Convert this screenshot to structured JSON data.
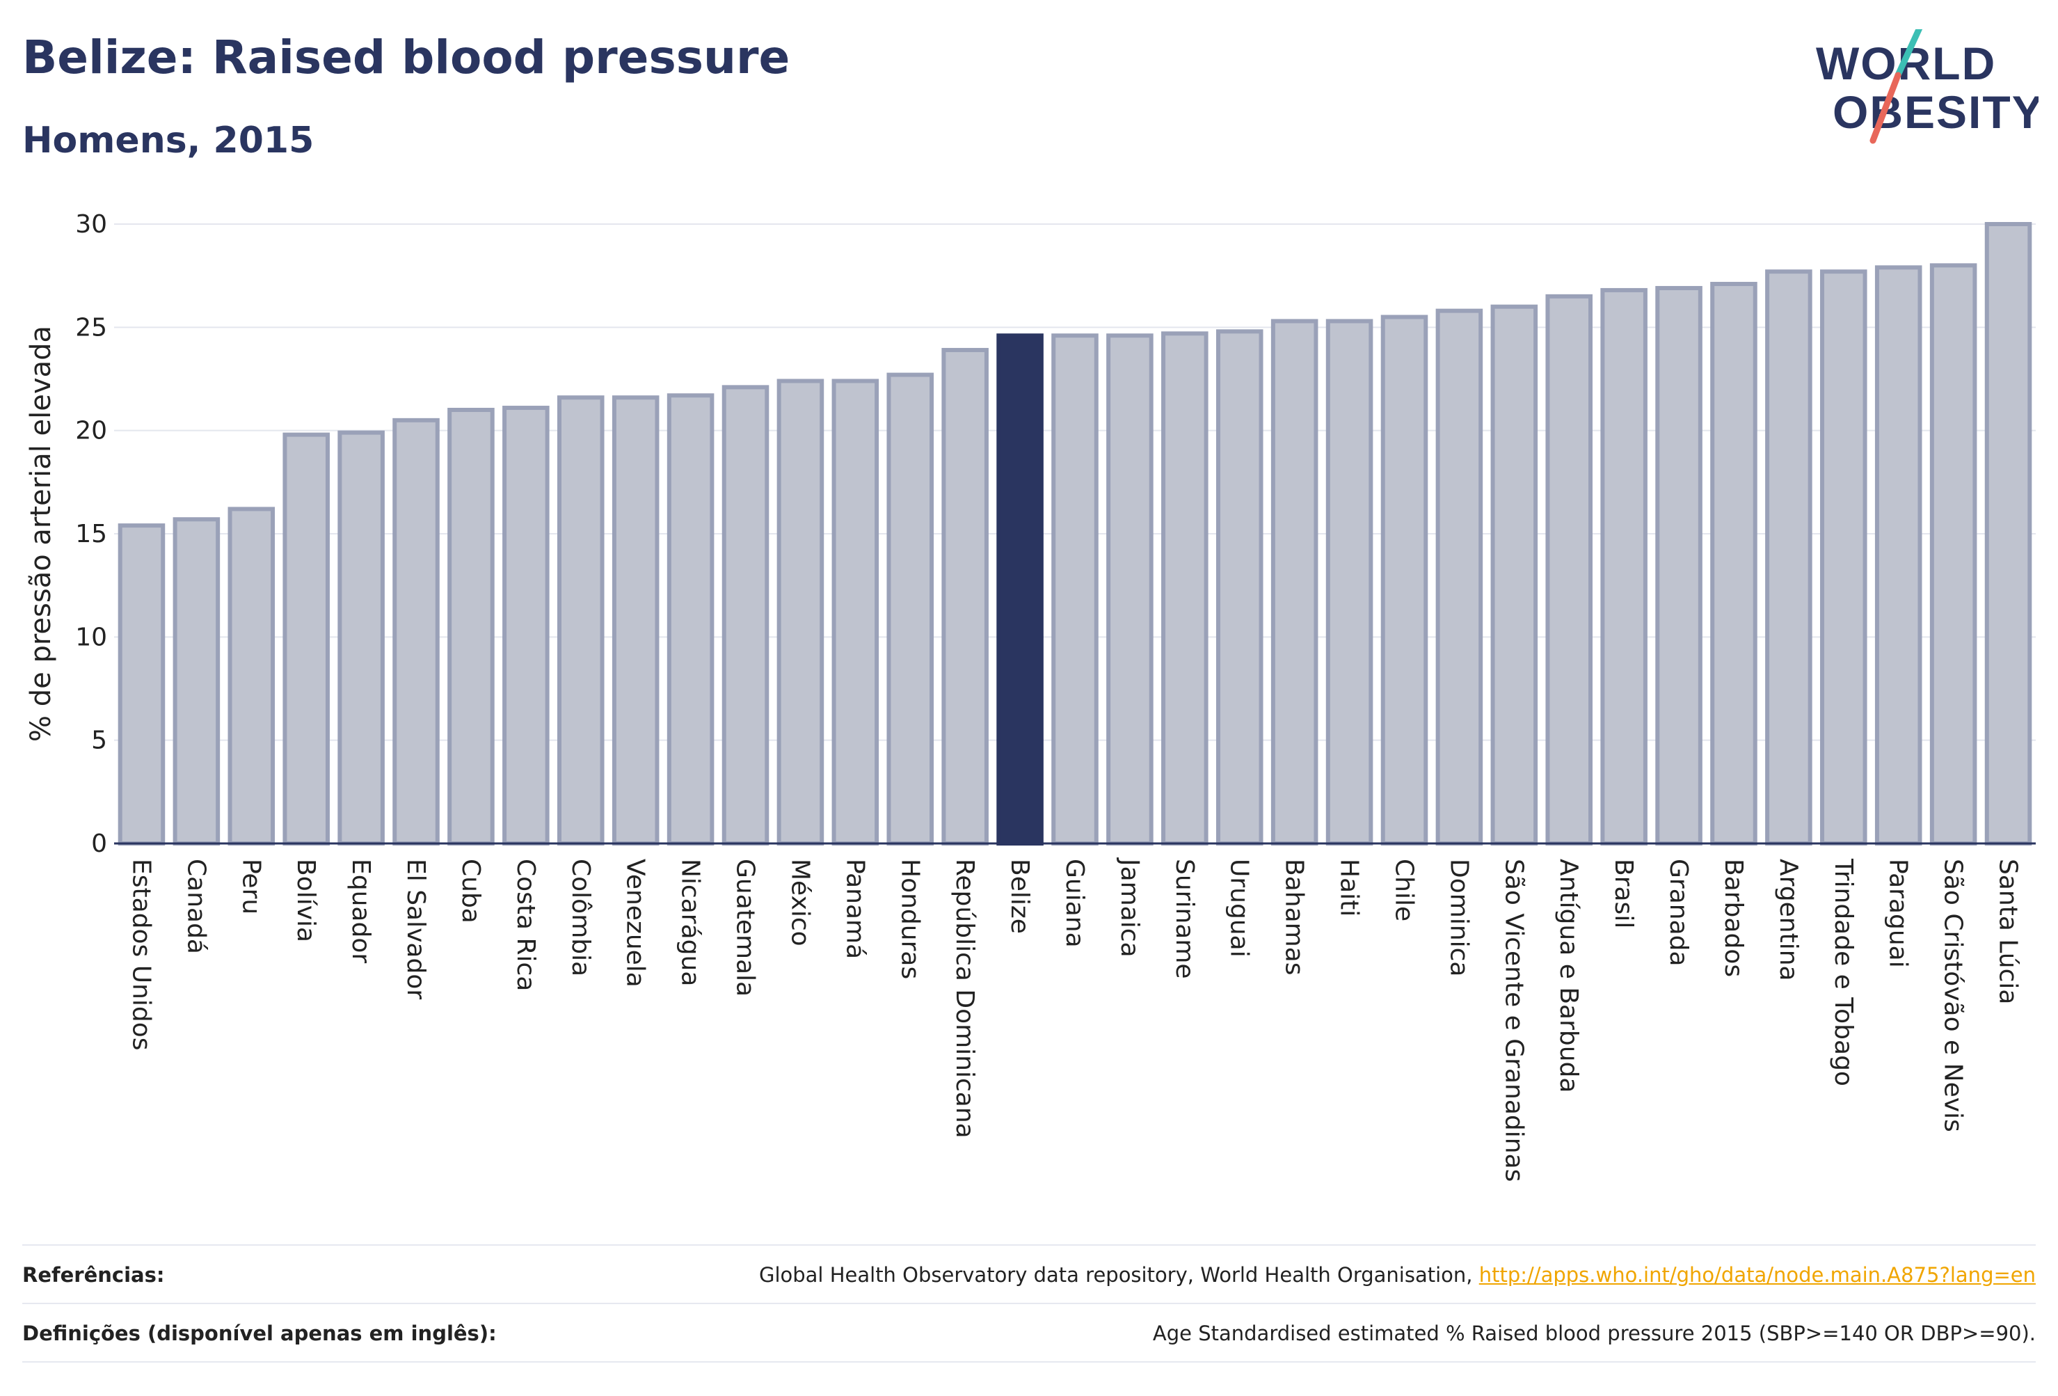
{
  "header": {
    "title": "Belize: Raised blood pressure",
    "subtitle": "Homens, 2015"
  },
  "logo": {
    "line1": "WORLD",
    "line2": "OBESITY"
  },
  "colors": {
    "highlight": "#2a3560",
    "bar_fill": "#bfc3cf",
    "bar_stroke": "#9aa1b8",
    "grid": "#e4e6ee",
    "axis": "#2a3560",
    "logo_teal": "#3cbfb4",
    "logo_coral": "#e8675a",
    "link": "#f0a500"
  },
  "chart_data": {
    "type": "bar",
    "ylabel": "% de pressão arterial elevada",
    "ylim": [
      0,
      30
    ],
    "yticks": [
      0,
      5,
      10,
      15,
      20,
      25,
      30
    ],
    "grid": true,
    "highlight": "Belize",
    "categories": [
      "Estados Unidos",
      "Canadá",
      "Peru",
      "Bolívia",
      "Equador",
      "El Salvador",
      "Cuba",
      "Costa Rica",
      "Colômbia",
      "Venezuela",
      "Nicarágua",
      "Guatemala",
      "México",
      "Panamá",
      "Honduras",
      "República Dominicana",
      "Belize",
      "Guiana",
      "Jamaica",
      "Suriname",
      "Uruguai",
      "Bahamas",
      "Haiti",
      "Chile",
      "Dominica",
      "São Vicente e Granadinas",
      "Antígua e Barbuda",
      "Brasil",
      "Granada",
      "Barbados",
      "Argentina",
      "Trindade e Tobago",
      "Paraguai",
      "São Cristóvão e Nevis",
      "Santa Lúcia"
    ],
    "values": [
      15.4,
      15.7,
      16.2,
      19.8,
      19.9,
      20.5,
      21.0,
      21.1,
      21.6,
      21.6,
      21.7,
      22.1,
      22.4,
      22.4,
      22.7,
      23.9,
      24.6,
      24.6,
      24.6,
      24.7,
      24.8,
      25.3,
      25.3,
      25.5,
      25.8,
      26.0,
      26.5,
      26.8,
      26.9,
      27.1,
      27.7,
      27.7,
      27.9,
      28.0,
      30.0
    ]
  },
  "footer": {
    "references_label": "Referências:",
    "references_text": "Global Health Observatory data repository, World Health Organisation,",
    "references_link": "http://apps.who.int/gho/data/node.main.A875?lang=en",
    "definitions_label": "Definições (disponível apenas em inglês):",
    "definitions_text": "Age Standardised estimated % Raised blood pressure 2015 (SBP>=140 OR DBP>=90)."
  }
}
